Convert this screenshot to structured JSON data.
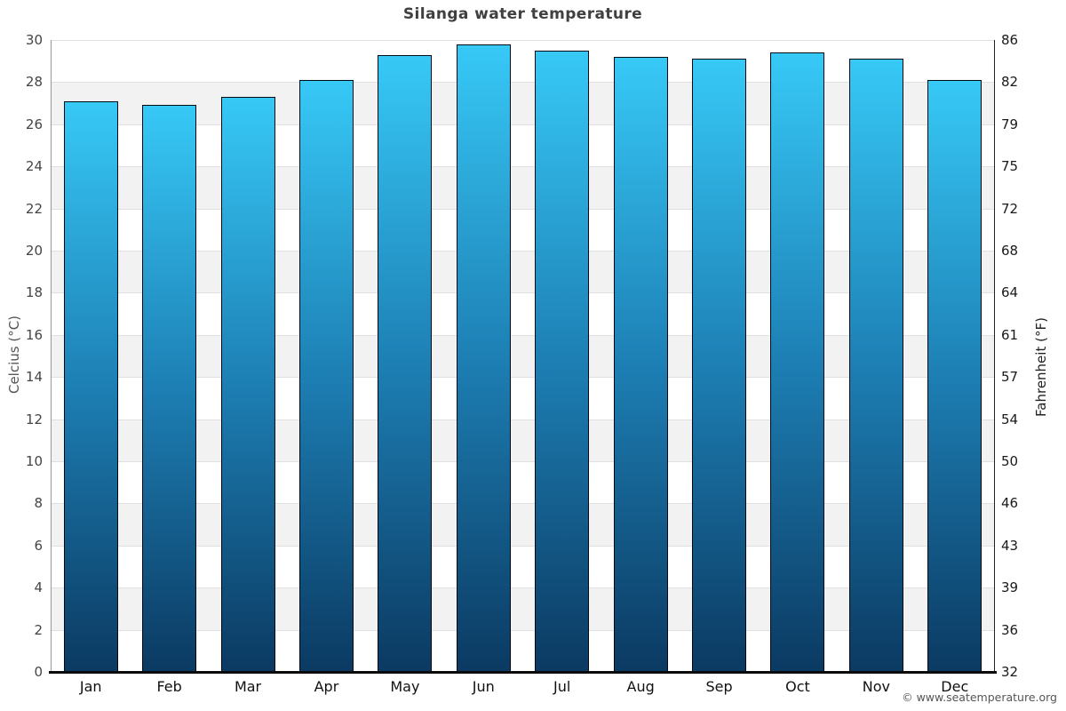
{
  "chart": {
    "title": "Silanga water temperature",
    "attribution": "© www.seatemperature.org"
  },
  "chart_data": {
    "type": "bar",
    "title": "Silanga water temperature",
    "categories": [
      "Jan",
      "Feb",
      "Mar",
      "Apr",
      "May",
      "Jun",
      "Jul",
      "Aug",
      "Sep",
      "Oct",
      "Nov",
      "Dec"
    ],
    "values": [
      27.1,
      26.9,
      27.3,
      28.1,
      29.3,
      29.8,
      29.5,
      29.2,
      29.1,
      29.4,
      29.1,
      28.1
    ],
    "unit": "°C",
    "ylabel_left": "Celcius (°C)",
    "ylabel_right": "Fahrenheit (°F)",
    "ylim": [
      0,
      30
    ],
    "ytick_step_celsius": 2,
    "yticks_celsius": [
      0,
      2,
      4,
      6,
      8,
      10,
      12,
      14,
      16,
      18,
      20,
      22,
      24,
      26,
      28,
      30
    ],
    "yticks_fahrenheit": [
      32,
      36,
      39,
      43,
      46,
      50,
      54,
      57,
      61,
      64,
      68,
      72,
      75,
      79,
      82,
      86
    ],
    "grid": "alternating-horizontal-bands",
    "legend": "none",
    "colors": {
      "bar_gradient_top": "#37c9f6",
      "bar_gradient_mid": "#1d7fb4",
      "bar_gradient_bottom": "#0b3a62",
      "bar_border": "#000a14",
      "band_gray": "#f2f2f2",
      "gridline": "#e0e0e0",
      "title_text": "#404040"
    },
    "attribution": "© www.seatemperature.org"
  }
}
